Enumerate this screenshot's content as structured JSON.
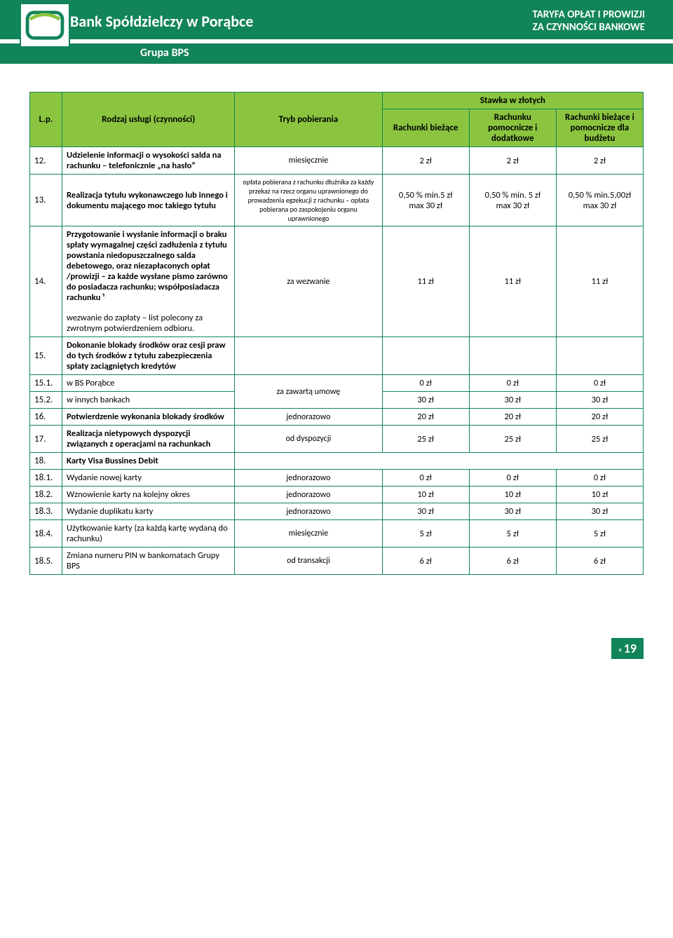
{
  "header": {
    "bank_name": "Bank Spółdzielczy w Porąbce",
    "group": "Grupa BPS",
    "tariff_line1": "TARYFA OPŁAT I PROWIZJI",
    "tariff_line2": "ZA CZYNNOŚCI BANKOWE"
  },
  "table": {
    "head": {
      "lp": "L.p.",
      "rodzaj": "Rodzaj usługi (czynności)",
      "tryb": "Tryb pobierania",
      "stawka": "Stawka w złotych",
      "col1": "Rachunki bieżące",
      "col2": "Rachunku pomocnicze i dodatkowe",
      "col3": "Rachunki bieżące i pomocnicze dla budżetu"
    },
    "rows": [
      {
        "lp": "12.",
        "desc": "Udzielenie informacji o wysokości salda na rachunku – telefonicznie „na hasło”",
        "tryb": "miesięcznie",
        "tryb_small": false,
        "v1": "2 zł",
        "v2": "2 zł",
        "v3": "2 zł"
      },
      {
        "lp": "13.",
        "desc": "Realizacja tytułu wykonawczego lub innego i dokumentu mającego moc takiego tytułu",
        "tryb": "opłata pobierana z rachunku dłużnika za każdy przekaz na rzecz organu uprawnionego do prowadzenia egzekucji z rachunku – opłata pobierana po zaspokojeniu organu uprawnionego",
        "tryb_small": true,
        "v1": "0,50 % min.5 zł\nmax 30 zł",
        "v2": "0,50 % min. 5 zł\nmax 30 zł",
        "v3": "0,50 % min.5,00zł\nmax 30 zł"
      },
      {
        "lp": "14.",
        "desc": "Przygotowanie i wysłanie informacji o braku spłaty wymagalnej części zadłużenia z tytułu powstania niedopuszczalnego salda debetowego, oraz niezapłaconych opłat /prowizji – za każde wysłane pismo zarówno do posiadacza rachunku; współposiadacza rachunku ¹\n\nwezwanie do zapłaty – list polecony za zwrotnym potwierdzeniem odbioru.",
        "tryb": "za wezwanie",
        "tryb_small": false,
        "v1": "11 zł",
        "v2": "11 zł",
        "v3": "11 zł"
      },
      {
        "lp": "15.",
        "desc": "Dokonanie blokady środków oraz cesji praw do tych środków z tytułu zabezpieczenia spłaty zaciągniętych kredytów",
        "tryb": "",
        "v1": "",
        "v2": "",
        "v3": "",
        "merge_below": true
      },
      {
        "lp": "15.1.",
        "desc": "w BS Porąbce",
        "tryb": "za zawartą umowę",
        "tryb_rowspan": 2,
        "v1": "0 zł",
        "v2": "0 zł",
        "v3": "0 zł"
      },
      {
        "lp": "15.2.",
        "desc": "w innych bankach",
        "v1": "30 zł",
        "v2": "30 zł",
        "v3": "30 zł"
      },
      {
        "lp": "16.",
        "desc": "Potwierdzenie wykonania blokady środków",
        "tryb": "jednorazowo",
        "v1": "20 zł",
        "v2": "20 zł",
        "v3": "20 zł"
      },
      {
        "lp": "17.",
        "desc": "Realizacja nietypowych dyspozycji związanych z operacjami na rachunkach",
        "tryb": "od dyspozycji",
        "v1": "25 zł",
        "v2": "25 zł",
        "v3": "25 zł"
      },
      {
        "lp": "18.",
        "desc": "Karty Visa Bussines Debit",
        "tryb": "",
        "v1": "",
        "v2": "",
        "v3": "",
        "empty_right": true
      },
      {
        "lp": "18.1.",
        "desc": "Wydanie nowej karty",
        "tryb": "jednorazowo",
        "v1": "0 zł",
        "v2": "0 zł",
        "v3": "0 zł"
      },
      {
        "lp": "18.2.",
        "desc": "Wznowienie karty na kolejny okres",
        "tryb": "jednorazowo",
        "v1": "10 zł",
        "v2": "10 zł",
        "v3": "10 zł"
      },
      {
        "lp": "18.3.",
        "desc": "Wydanie duplikatu karty",
        "tryb": "jednorazowo",
        "v1": "30 zł",
        "v2": "30 zł",
        "v3": "30 zł"
      },
      {
        "lp": "18.4.",
        "desc": "Użytkowanie karty (za każdą kartę wydaną do rachunku)",
        "tryb": "miesięcznie",
        "v1": "5 zł",
        "v2": "5 zł",
        "v3": "5 zł"
      },
      {
        "lp": "18.5.",
        "desc": "Zmiana numeru PIN w bankomatach Grupy BPS",
        "tryb": "od transakcji",
        "v1": "6 zł",
        "v2": "6 zł",
        "v3": "6 zł"
      }
    ]
  },
  "page_number": "19",
  "colors": {
    "brand_green": "#118459",
    "header_lime": "#8bc53f",
    "border": "#118459",
    "text": "#000000",
    "white": "#ffffff"
  }
}
